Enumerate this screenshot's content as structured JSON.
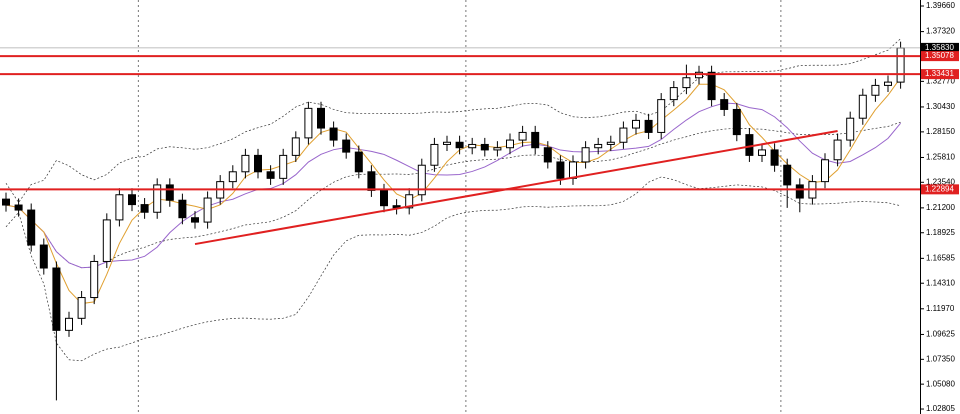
{
  "chart_data": {
    "type": "candlestick",
    "open": [
      1.22,
      1.2146,
      1.21,
      1.178,
      1.157,
      1.1,
      1.111,
      1.13,
      1.163,
      1.201,
      1.224,
      1.215,
      1.208,
      1.233,
      1.219,
      1.203,
      1.199,
      1.221,
      1.236,
      1.245,
      1.26,
      1.245,
      1.239,
      1.26,
      1.276,
      1.303,
      1.285,
      1.274,
      1.263,
      1.245,
      1.228,
      1.214,
      1.212,
      1.224,
      1.251,
      1.27,
      1.272,
      1.267,
      1.27,
      1.265,
      1.267,
      1.274,
      1.281,
      1.267,
      1.254,
      1.239,
      1.254,
      1.267,
      1.27,
      1.272,
      1.285,
      1.292,
      1.281,
      1.311,
      1.322,
      1.331,
      1.336,
      1.311,
      1.302,
      1.279,
      1.26,
      1.265,
      1.251,
      1.233,
      1.221,
      1.236,
      1.256,
      1.274,
      1.294,
      1.315,
      1.324,
      1.327
    ],
    "high": [
      1.226,
      1.2206,
      1.216,
      1.184,
      1.163,
      1.117,
      1.136,
      1.169,
      1.207,
      1.23,
      1.23,
      1.221,
      1.239,
      1.239,
      1.225,
      1.209,
      1.227,
      1.242,
      1.251,
      1.266,
      1.266,
      1.251,
      1.266,
      1.282,
      1.309,
      1.309,
      1.291,
      1.28,
      1.269,
      1.251,
      1.234,
      1.22,
      1.23,
      1.257,
      1.276,
      1.278,
      1.278,
      1.276,
      1.276,
      1.273,
      1.28,
      1.287,
      1.287,
      1.273,
      1.26,
      1.26,
      1.273,
      1.276,
      1.278,
      1.291,
      1.298,
      1.298,
      1.317,
      1.328,
      1.343,
      1.342,
      1.342,
      1.317,
      1.308,
      1.285,
      1.271,
      1.271,
      1.257,
      1.239,
      1.242,
      1.262,
      1.28,
      1.3,
      1.321,
      1.33,
      1.333,
      1.364
    ],
    "low": [
      1.2086,
      1.204,
      1.172,
      1.151,
      1.036,
      1.094,
      1.105,
      1.124,
      1.157,
      1.195,
      1.209,
      1.202,
      1.202,
      1.213,
      1.197,
      1.193,
      1.193,
      1.215,
      1.23,
      1.239,
      1.239,
      1.233,
      1.233,
      1.254,
      1.27,
      1.279,
      1.268,
      1.257,
      1.239,
      1.222,
      1.208,
      1.206,
      1.206,
      1.218,
      1.245,
      1.264,
      1.261,
      1.261,
      1.259,
      1.259,
      1.261,
      1.268,
      1.261,
      1.248,
      1.233,
      1.233,
      1.248,
      1.261,
      1.264,
      1.266,
      1.279,
      1.275,
      1.275,
      1.305,
      1.316,
      1.325,
      1.305,
      1.296,
      1.273,
      1.254,
      1.254,
      1.245,
      1.212,
      1.208,
      1.215,
      1.23,
      1.25,
      1.268,
      1.288,
      1.309,
      1.318,
      1.321
    ],
    "close": [
      1.2146,
      1.21,
      1.178,
      1.157,
      1.1,
      1.111,
      1.13,
      1.163,
      1.201,
      1.224,
      1.215,
      1.208,
      1.233,
      1.219,
      1.203,
      1.199,
      1.221,
      1.236,
      1.245,
      1.26,
      1.245,
      1.239,
      1.26,
      1.276,
      1.303,
      1.285,
      1.274,
      1.263,
      1.245,
      1.228,
      1.214,
      1.212,
      1.224,
      1.251,
      1.27,
      1.272,
      1.267,
      1.27,
      1.265,
      1.267,
      1.274,
      1.281,
      1.267,
      1.254,
      1.239,
      1.254,
      1.267,
      1.27,
      1.272,
      1.285,
      1.292,
      1.281,
      1.311,
      1.322,
      1.331,
      1.336,
      1.311,
      1.302,
      1.279,
      1.26,
      1.265,
      1.251,
      1.233,
      1.221,
      1.236,
      1.256,
      1.274,
      1.294,
      1.315,
      1.324,
      1.327,
      1.3583
    ],
    "ylim": [
      1.0235,
      1.4021
    ],
    "yticks": [
      {
        "value": 1.3966,
        "label": "1.39660"
      },
      {
        "value": 1.3732,
        "label": "1.37320"
      },
      {
        "value": 1.3277,
        "label": "1.32770"
      },
      {
        "value": 1.3043,
        "label": "1.30430"
      },
      {
        "value": 1.2815,
        "label": "1.28150"
      },
      {
        "value": 1.2581,
        "label": "1.25810"
      },
      {
        "value": 1.2354,
        "label": "1.23540"
      },
      {
        "value": 1.212,
        "label": "1.21200"
      },
      {
        "value": 1.18925,
        "label": "1.18925"
      },
      {
        "value": 1.16585,
        "label": "1.16585"
      },
      {
        "value": 1.1431,
        "label": "1.14310"
      },
      {
        "value": 1.1197,
        "label": "1.11970"
      },
      {
        "value": 1.09625,
        "label": "1.09625"
      },
      {
        "value": 1.0735,
        "label": "1.07350"
      },
      {
        "value": 1.0508,
        "label": "1.05080"
      },
      {
        "value": 1.02805,
        "label": "1.02805"
      }
    ],
    "current_price": {
      "value": 1.3583,
      "label": "1.35830"
    },
    "levels": [
      {
        "value": 1.35078,
        "label": "1.35078"
      },
      {
        "value": 1.33431,
        "label": "1.33431"
      },
      {
        "value": 1.22894,
        "label": "1.22894"
      }
    ],
    "level_color": "#e02020",
    "trendline": {
      "start": {
        "index": 15,
        "price": 1.1789
      },
      "end": {
        "index": 66,
        "price": 1.2823
      }
    },
    "separators": [
      11,
      37,
      62
    ]
  }
}
